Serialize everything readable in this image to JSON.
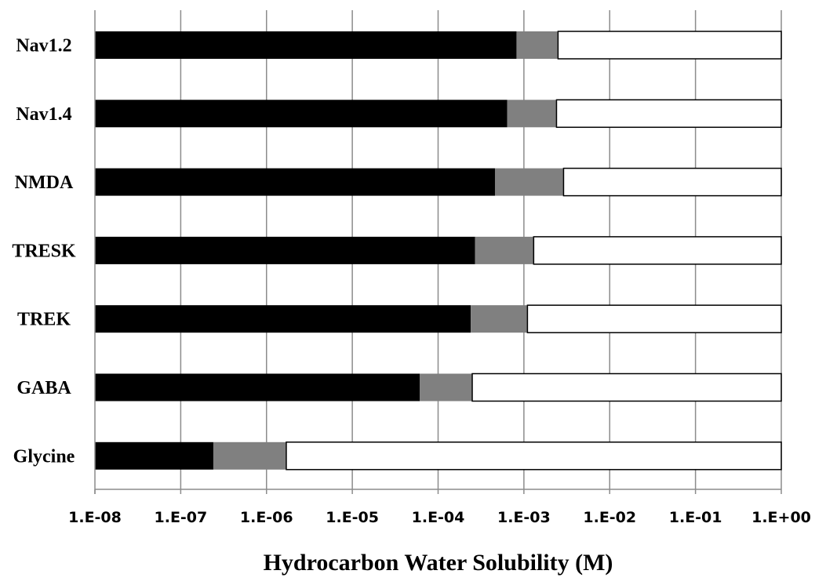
{
  "chart_data": {
    "type": "bar",
    "orientation": "horizontal",
    "stacked": true,
    "x_scale": "log",
    "xlim": [
      1e-08,
      1
    ],
    "xlabel": "Hydrocarbon Water Solubility (M)",
    "x_ticks": [
      1e-08,
      1e-07,
      1e-06,
      1e-05,
      0.0001,
      0.001,
      0.01,
      0.1,
      1
    ],
    "x_tick_labels": [
      "1.E-08",
      "1.E-07",
      "1.E-06",
      "1.E-05",
      "1.E-04",
      "1.E-03",
      "1.E-02",
      "1.E-01",
      "1.E+00"
    ],
    "grid": "vertical",
    "legend": "none",
    "categories": [
      "Nav1.2",
      "Nav1.4",
      "NMDA",
      "TRESK",
      "TREK",
      "GABA",
      "Glycine"
    ],
    "series": [
      {
        "color": "#000000",
        "from": [
          1e-08,
          1e-08,
          1e-08,
          1e-08,
          1e-08,
          1e-08,
          1e-08
        ],
        "to": [
          0.00082,
          0.00064,
          0.00046,
          0.00027,
          0.00024,
          6.1e-05,
          2.4e-07
        ]
      },
      {
        "color": "#808080",
        "from": [
          0.00082,
          0.00064,
          0.00046,
          0.00027,
          0.00024,
          6.1e-05,
          2.4e-07
        ],
        "to": [
          0.0025,
          0.0024,
          0.0029,
          0.0013,
          0.0011,
          0.00025,
          1.7e-06
        ]
      },
      {
        "color": "#ffffff",
        "from": [
          0.0025,
          0.0024,
          0.0029,
          0.0013,
          0.0011,
          0.00025,
          1.7e-06
        ],
        "to": [
          1,
          1,
          1,
          1,
          1,
          1,
          1
        ]
      }
    ]
  }
}
